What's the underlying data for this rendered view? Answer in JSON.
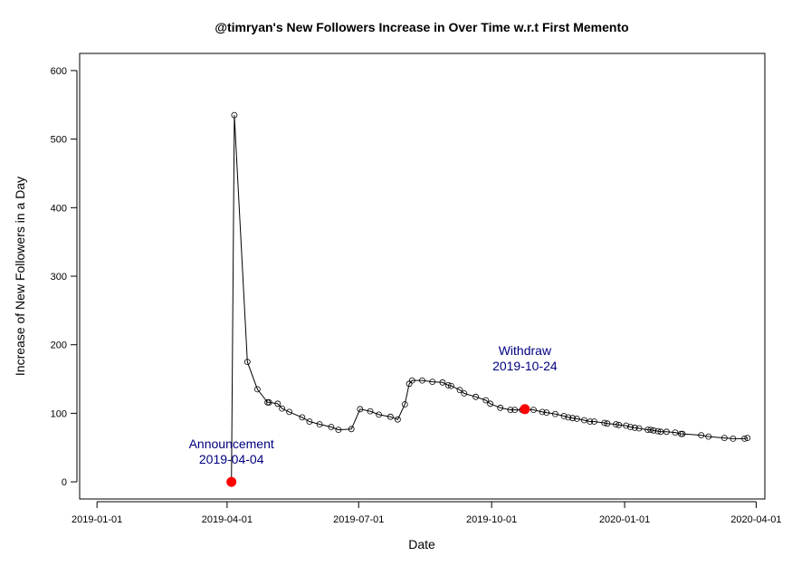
{
  "chart_data": {
    "type": "line",
    "title": "@timryan's New Followers Increase in Over Time w.r.t First Memento",
    "xlabel": "Date",
    "ylabel": "Increase of New Followers in a Day",
    "xlim": [
      "2018-12-20",
      "2020-04-07"
    ],
    "ylim": [
      -25,
      625
    ],
    "x_ticks": [
      "2019-01-01",
      "2019-04-01",
      "2019-07-01",
      "2019-10-01",
      "2020-01-01",
      "2020-04-01"
    ],
    "y_ticks": [
      0,
      100,
      200,
      300,
      400,
      500,
      600
    ],
    "grid": false,
    "series": [
      {
        "x": [
          "2019-04-04",
          "2019-04-06",
          "2019-04-15",
          "2019-04-22",
          "2019-04-29",
          "2019-04-30",
          "2019-05-06",
          "2019-05-09",
          "2019-05-14",
          "2019-05-23",
          "2019-05-28",
          "2019-06-04",
          "2019-06-12",
          "2019-06-17",
          "2019-06-26",
          "2019-07-02",
          "2019-07-09",
          "2019-07-15",
          "2019-07-23",
          "2019-07-28",
          "2019-08-02",
          "2019-08-05",
          "2019-08-07",
          "2019-08-14",
          "2019-08-21",
          "2019-08-28",
          "2019-09-01",
          "2019-09-03",
          "2019-09-09",
          "2019-09-12",
          "2019-09-20",
          "2019-09-27",
          "2019-09-30",
          "2019-10-07",
          "2019-10-14",
          "2019-10-17",
          "2019-10-22",
          "2019-10-24",
          "2019-10-30",
          "2019-11-05",
          "2019-11-08",
          "2019-11-14",
          "2019-11-20",
          "2019-11-23",
          "2019-11-26",
          "2019-11-29",
          "2019-12-04",
          "2019-12-08",
          "2019-12-11",
          "2019-12-18",
          "2019-12-20",
          "2019-12-26",
          "2019-12-28",
          "2020-01-02",
          "2020-01-05",
          "2020-01-08",
          "2020-01-11",
          "2020-01-17",
          "2020-01-19",
          "2020-01-21",
          "2020-01-24",
          "2020-01-26",
          "2020-01-30",
          "2020-02-05",
          "2020-02-09",
          "2020-02-10",
          "2020-02-23",
          "2020-02-28",
          "2020-03-10",
          "2020-03-16",
          "2020-03-24",
          "2020-03-26"
        ],
        "y": [
          0,
          535,
          175,
          135,
          116,
          116,
          114,
          107,
          102,
          94,
          88,
          84,
          80,
          76,
          77,
          106,
          103,
          98,
          95,
          91,
          113,
          143,
          148,
          148,
          146,
          145,
          141,
          140,
          134,
          129,
          124,
          119,
          114,
          108,
          105,
          105,
          105,
          106,
          105,
          102,
          101,
          99,
          96,
          94,
          93,
          92,
          90,
          88,
          88,
          86,
          85,
          84,
          83,
          82,
          80,
          79,
          78,
          76,
          76,
          75,
          74,
          73,
          73,
          72,
          70,
          70,
          68,
          66,
          64,
          63,
          63,
          64
        ]
      }
    ],
    "highlights": [
      {
        "x": "2019-04-04",
        "y": 0,
        "label_line1": "Announcement",
        "label_line2": "2019-04-04"
      },
      {
        "x": "2019-10-24",
        "y": 106,
        "label_line1": "Withdraw",
        "label_line2": "2019-10-24"
      }
    ],
    "colors": {
      "line": "#000000",
      "highlight": "#ff0000",
      "annotation": "#000080"
    }
  }
}
